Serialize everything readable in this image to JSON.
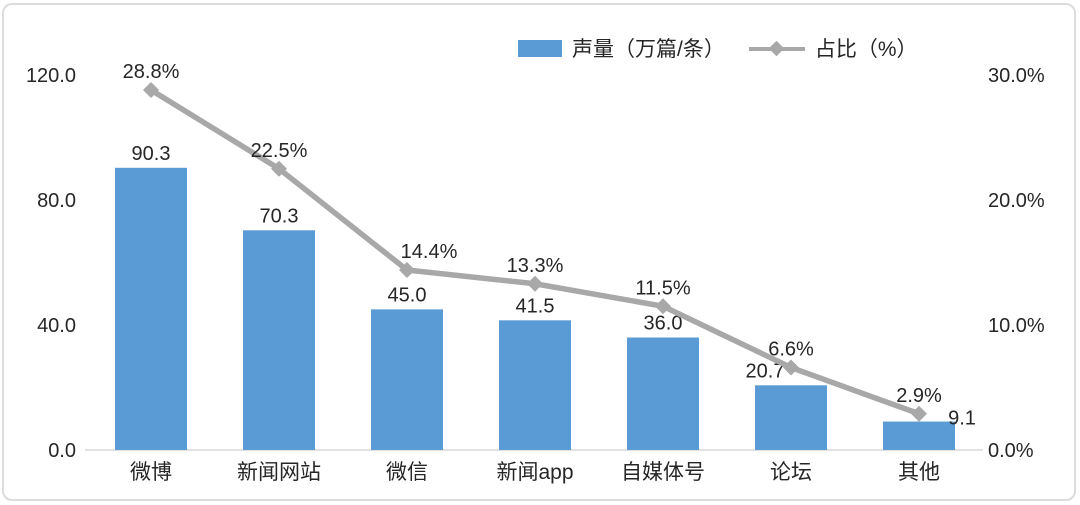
{
  "chart_data": {
    "type": "combo",
    "categories": [
      "微博",
      "新闻网站",
      "微信",
      "新闻app",
      "自媒体号",
      "论坛",
      "其他"
    ],
    "series": [
      {
        "name": "声量（万篇/条）",
        "type": "bar",
        "axis": "left",
        "values": [
          90.3,
          70.3,
          45.0,
          41.5,
          36.0,
          20.7,
          9.1
        ]
      },
      {
        "name": "占比（%）",
        "type": "line",
        "axis": "right",
        "values": [
          28.8,
          22.5,
          14.4,
          13.3,
          11.5,
          6.6,
          2.9
        ]
      }
    ],
    "bar_labels": [
      "90.3",
      "70.3",
      "45.0",
      "41.5",
      "36.0",
      "20.7",
      "9.1"
    ],
    "line_labels": [
      "28.8%",
      "22.5%",
      "14.4%",
      "13.3%",
      "11.5%",
      "6.6%",
      "2.9%"
    ],
    "left_axis": {
      "min": 0,
      "max": 120,
      "ticks": [
        "0.0",
        "40.0",
        "80.0",
        "120.0"
      ]
    },
    "right_axis": {
      "min": 0,
      "max": 30,
      "ticks": [
        "0.0%",
        "10.0%",
        "20.0%",
        "30.0%"
      ]
    },
    "title": "",
    "grid": false,
    "legend_position": "top",
    "colors": {
      "bar": "#5b9bd5",
      "line": "#a8a8a8",
      "text": "#262626",
      "axis_line": "#d9d9d9",
      "frame_border": "#dcdcdc"
    }
  }
}
